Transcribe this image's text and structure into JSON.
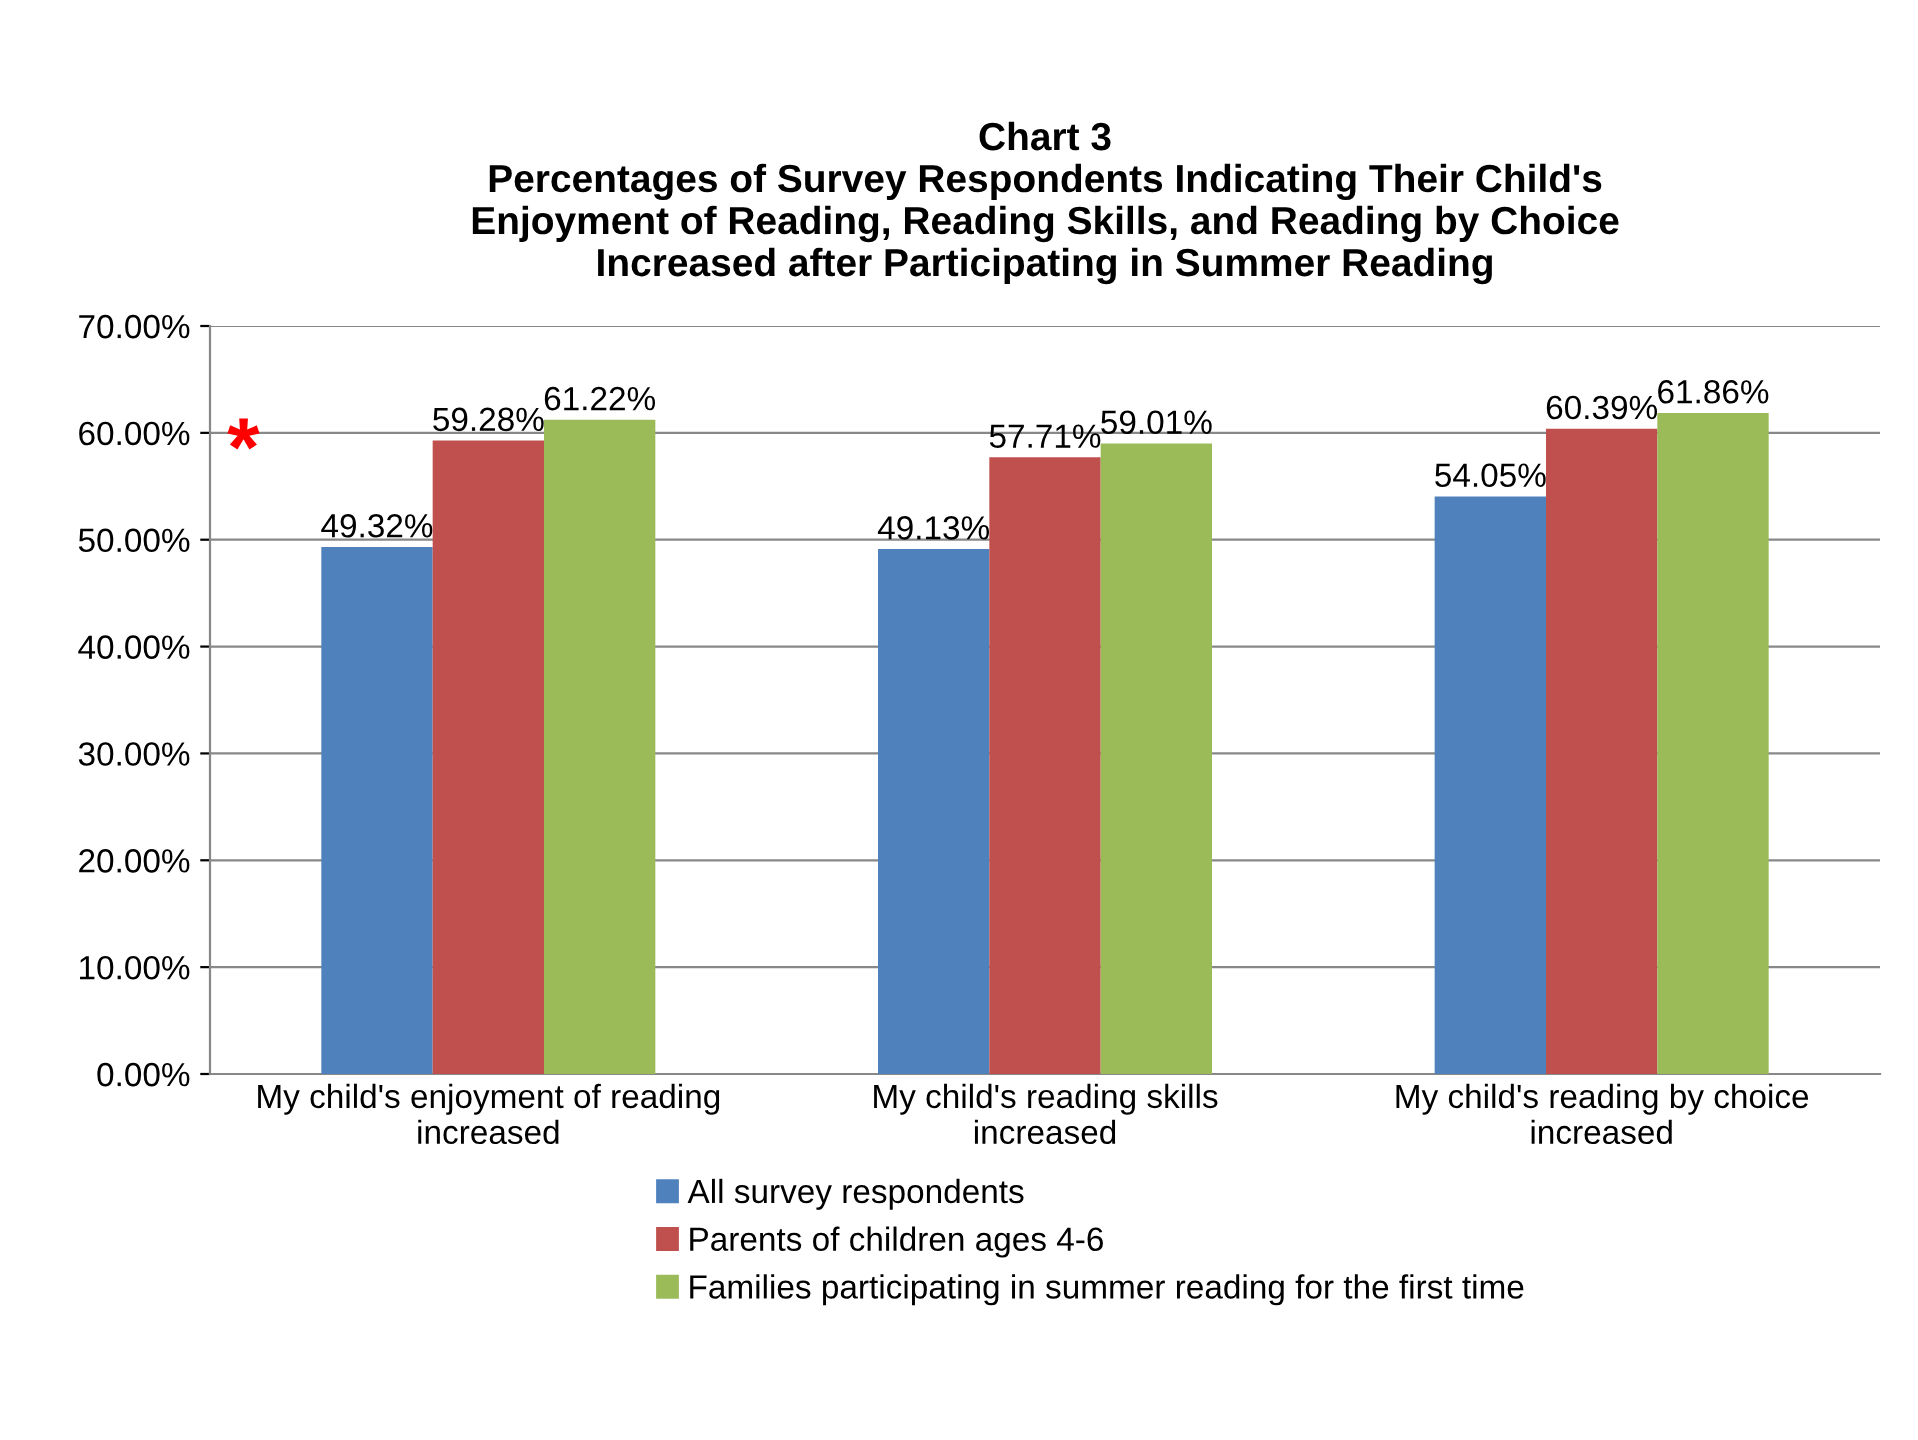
{
  "chart_data": {
    "type": "bar",
    "title": "Chart 3\nPercentages of Survey Respondents Indicating Their Child's\nEnjoyment of Reading, Reading Skills, and Reading by Choice\nIncreased after Participating in Summer Reading",
    "categories": [
      "My child's enjoyment of reading\nincreased",
      "My child's reading skills\nincreased",
      "My child's reading by choice\nincreased"
    ],
    "series": [
      {
        "name": "All survey respondents",
        "color": "#4f81bd",
        "values": [
          49.32,
          49.13,
          54.05
        ],
        "value_labels": [
          "49.32%",
          "49.13%",
          "54.05%"
        ]
      },
      {
        "name": "Parents of children ages 4-6",
        "color": "#c0504d",
        "values": [
          59.28,
          57.71,
          60.39
        ],
        "value_labels": [
          "59.28%",
          "57.71%",
          "60.39%"
        ]
      },
      {
        "name": "Families participating in summer reading for the first time",
        "color": "#9bbb59",
        "values": [
          61.22,
          59.01,
          61.86
        ],
        "value_labels": [
          "61.22%",
          "59.01%",
          "61.86%"
        ]
      }
    ],
    "ylim": [
      0,
      70
    ],
    "yticks": [
      {
        "value": 0,
        "label": "0.00%"
      },
      {
        "value": 10,
        "label": "10.00%"
      },
      {
        "value": 20,
        "label": "20.00%"
      },
      {
        "value": 30,
        "label": "30.00%"
      },
      {
        "value": 40,
        "label": "40.00%"
      },
      {
        "value": 50,
        "label": "50.00%"
      },
      {
        "value": 60,
        "label": "60.00%"
      },
      {
        "value": 70,
        "label": "70.00%"
      }
    ],
    "grid": "y",
    "legend": "bottom",
    "annotations": [
      "*"
    ]
  }
}
